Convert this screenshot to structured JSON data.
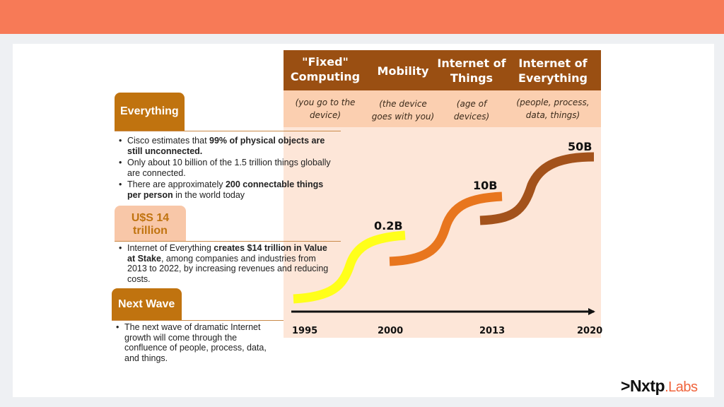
{
  "columns": [
    {
      "title_lines": [
        "\"Fixed\"",
        "Computing"
      ],
      "sub_lines": [
        "(you go to the",
        "device)"
      ]
    },
    {
      "title_lines": [
        "Mobility"
      ],
      "sub_lines": [
        "(the device",
        "goes with you)"
      ]
    },
    {
      "title_lines": [
        "Internet of",
        "Things"
      ],
      "sub_lines": [
        "(age of",
        "devices)"
      ]
    },
    {
      "title_lines": [
        "Internet of",
        "Everything"
      ],
      "sub_lines": [
        "(people, process,",
        "data, things)"
      ]
    }
  ],
  "timeline": {
    "years": [
      "1995",
      "2000",
      "2013",
      "2020"
    ],
    "stages": [
      {
        "label": "0.2B",
        "color": "#ffff1a"
      },
      {
        "label": "10B",
        "color": "#e8761e"
      },
      {
        "label": "50B",
        "color": "#a3521b"
      }
    ]
  },
  "sections": {
    "everything": {
      "tab": "Everything",
      "bullets": [
        [
          {
            "t": "Cisco estimates that ",
            "b": false
          },
          {
            "t": "99% of physical objects are still unconnected.",
            "b": true
          }
        ],
        [
          {
            "t": "Only about 10 billion of the 1.5 trillion things globally are connected.",
            "b": false
          }
        ],
        [
          {
            "t": "There are approximately ",
            "b": false
          },
          {
            "t": "200 connectable things per person",
            "b": true
          },
          {
            "t": " in the world today",
            "b": false
          }
        ]
      ]
    },
    "value": {
      "tab_lines": [
        "U$S 14",
        "trillion"
      ],
      "bullets": [
        [
          {
            "t": "Internet of Everything ",
            "b": false
          },
          {
            "t": "creates $14 trillion in Value at Stake",
            "b": true
          },
          {
            "t": ", among companies and industries from 2013 to 2022, by increasing revenues and reducing costs.",
            "b": false
          }
        ]
      ]
    },
    "next_wave": {
      "tab": "Next Wave",
      "bullets": [
        [
          {
            "t": "The next wave of dramatic Internet growth will come through the confluence of people, process, data, and things.",
            "b": false
          }
        ]
      ]
    }
  },
  "brand": {
    "prefix": ">",
    "name": "Nxtp",
    "suffix": ".Labs"
  }
}
